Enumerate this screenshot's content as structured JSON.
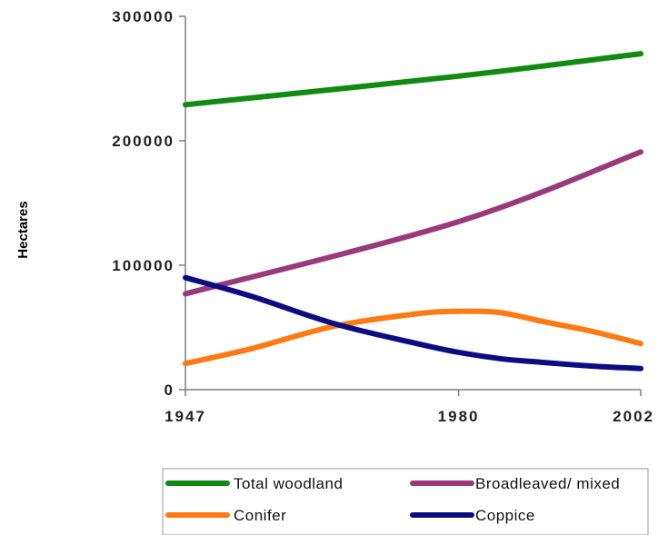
{
  "chart_data": {
    "type": "line",
    "title": "",
    "xlabel": "",
    "ylabel": "Hectares",
    "x": [
      1947,
      1980,
      2002
    ],
    "x_ticks": [
      "1947",
      "1980",
      "2002"
    ],
    "ylim": [
      0,
      300000
    ],
    "y_ticks": [
      "0",
      "100000",
      "200000",
      "300000"
    ],
    "grid": false,
    "legend_position": "bottom",
    "series": [
      {
        "name": "Total woodland",
        "color": "#118a11",
        "x": [
          1947,
          1980,
          2002
        ],
        "values": [
          229000,
          252000,
          270000
        ]
      },
      {
        "name": "Broadleaved/ mixed",
        "color": "#983a7c",
        "x": [
          1947,
          1980,
          2002
        ],
        "values": [
          77000,
          135000,
          191000
        ]
      },
      {
        "name": "Conifer",
        "color": "#ff7a12",
        "x": [
          1947,
          1955,
          1965,
          1975,
          1980,
          1985,
          1990,
          1996,
          2002
        ],
        "values": [
          21000,
          33000,
          51000,
          61000,
          63000,
          62000,
          55000,
          47000,
          37000
        ]
      },
      {
        "name": "Coppice",
        "color": "#0c0c82",
        "x": [
          1947,
          1955,
          1965,
          1975,
          1980,
          1985,
          1990,
          1996,
          2002
        ],
        "values": [
          90000,
          75000,
          53000,
          37000,
          30000,
          25000,
          22000,
          19000,
          17000
        ]
      }
    ]
  }
}
